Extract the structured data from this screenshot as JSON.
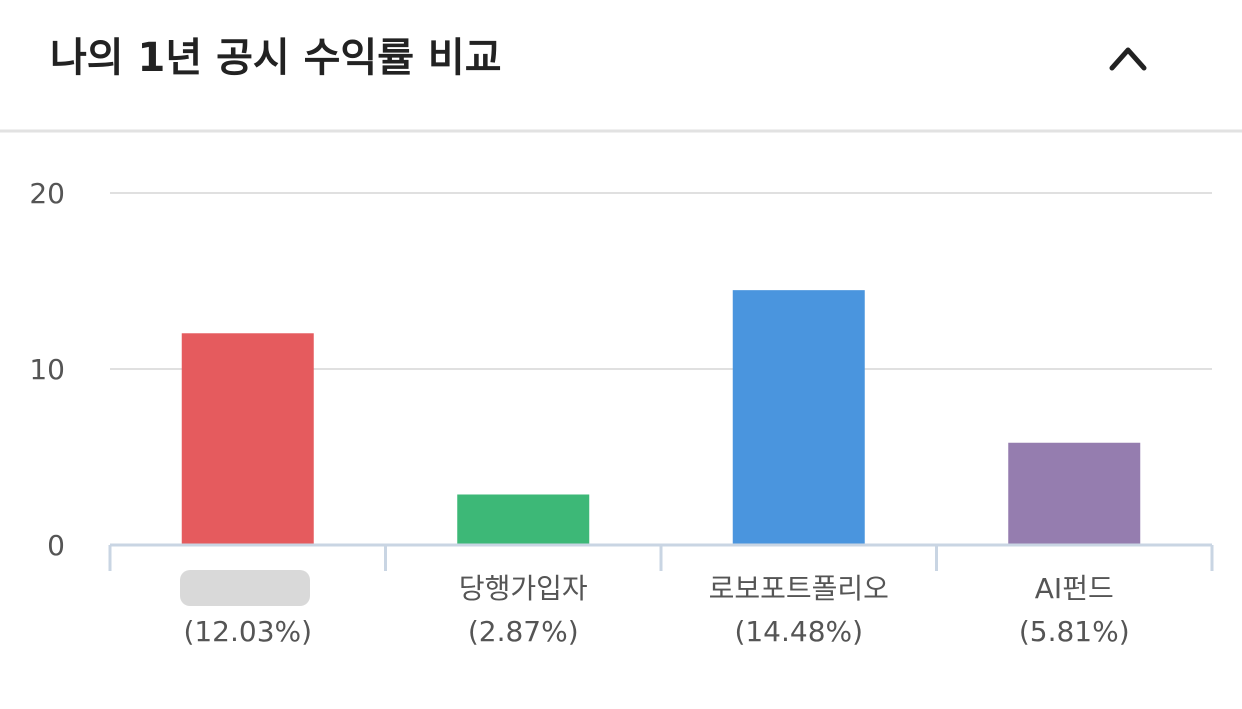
{
  "chart_data": {
    "type": "bar",
    "title": "나의 1년 공시 수익률 비교",
    "categories": [
      null,
      "당행가입자",
      "로보포트폴리오",
      "AI펀드"
    ],
    "values": [
      12.03,
      2.87,
      14.48,
      5.81
    ],
    "value_labels": [
      "(12.03%)",
      "(2.87%)",
      "(14.48%)",
      "(5.81%)"
    ],
    "colors": [
      "#e55b5e",
      "#3db877",
      "#4a95de",
      "#957daf"
    ],
    "ylim": [
      0,
      20
    ],
    "yticks": [
      0,
      10,
      20
    ],
    "grid": true
  }
}
